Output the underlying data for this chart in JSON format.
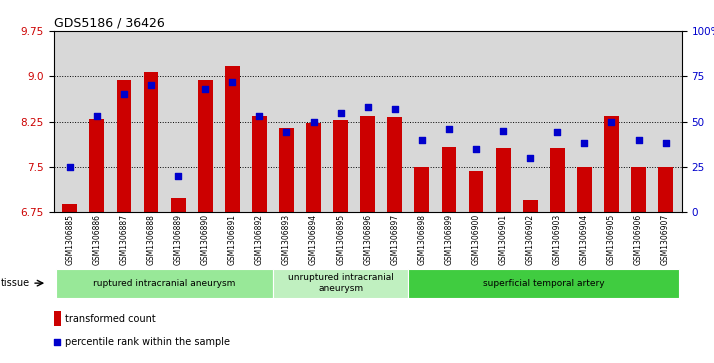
{
  "title": "GDS5186 / 36426",
  "samples": [
    "GSM1306885",
    "GSM1306886",
    "GSM1306887",
    "GSM1306888",
    "GSM1306889",
    "GSM1306890",
    "GSM1306891",
    "GSM1306892",
    "GSM1306893",
    "GSM1306894",
    "GSM1306895",
    "GSM1306896",
    "GSM1306897",
    "GSM1306898",
    "GSM1306899",
    "GSM1306900",
    "GSM1306901",
    "GSM1306902",
    "GSM1306903",
    "GSM1306904",
    "GSM1306905",
    "GSM1306906",
    "GSM1306907"
  ],
  "bar_values": [
    6.88,
    8.3,
    8.93,
    9.07,
    6.98,
    8.93,
    9.17,
    8.35,
    8.15,
    8.22,
    8.28,
    8.35,
    8.33,
    7.5,
    7.83,
    7.44,
    7.82,
    6.95,
    7.82,
    7.5,
    8.35,
    7.5,
    7.5
  ],
  "dot_values": [
    25,
    53,
    65,
    70,
    20,
    68,
    72,
    53,
    44,
    50,
    55,
    58,
    57,
    40,
    46,
    35,
    45,
    30,
    44,
    38,
    50,
    40,
    38
  ],
  "ylim_left": [
    6.75,
    9.75
  ],
  "ylim_right": [
    0,
    100
  ],
  "yticks_left": [
    6.75,
    7.5,
    8.25,
    9.0,
    9.75
  ],
  "yticks_right": [
    0,
    25,
    50,
    75,
    100
  ],
  "bar_color": "#cc0000",
  "dot_color": "#0000cc",
  "plot_bg_color": "#d8d8d8",
  "groups": [
    {
      "label": "ruptured intracranial aneurysm",
      "start": 0,
      "end": 8,
      "color": "#98e898"
    },
    {
      "label": "unruptured intracranial\naneurysm",
      "start": 8,
      "end": 13,
      "color": "#c0f0c0"
    },
    {
      "label": "superficial temporal artery",
      "start": 13,
      "end": 23,
      "color": "#40cc40"
    }
  ],
  "tissue_label": "tissue",
  "legend_bar_label": "transformed count",
  "legend_dot_label": "percentile rank within the sample"
}
